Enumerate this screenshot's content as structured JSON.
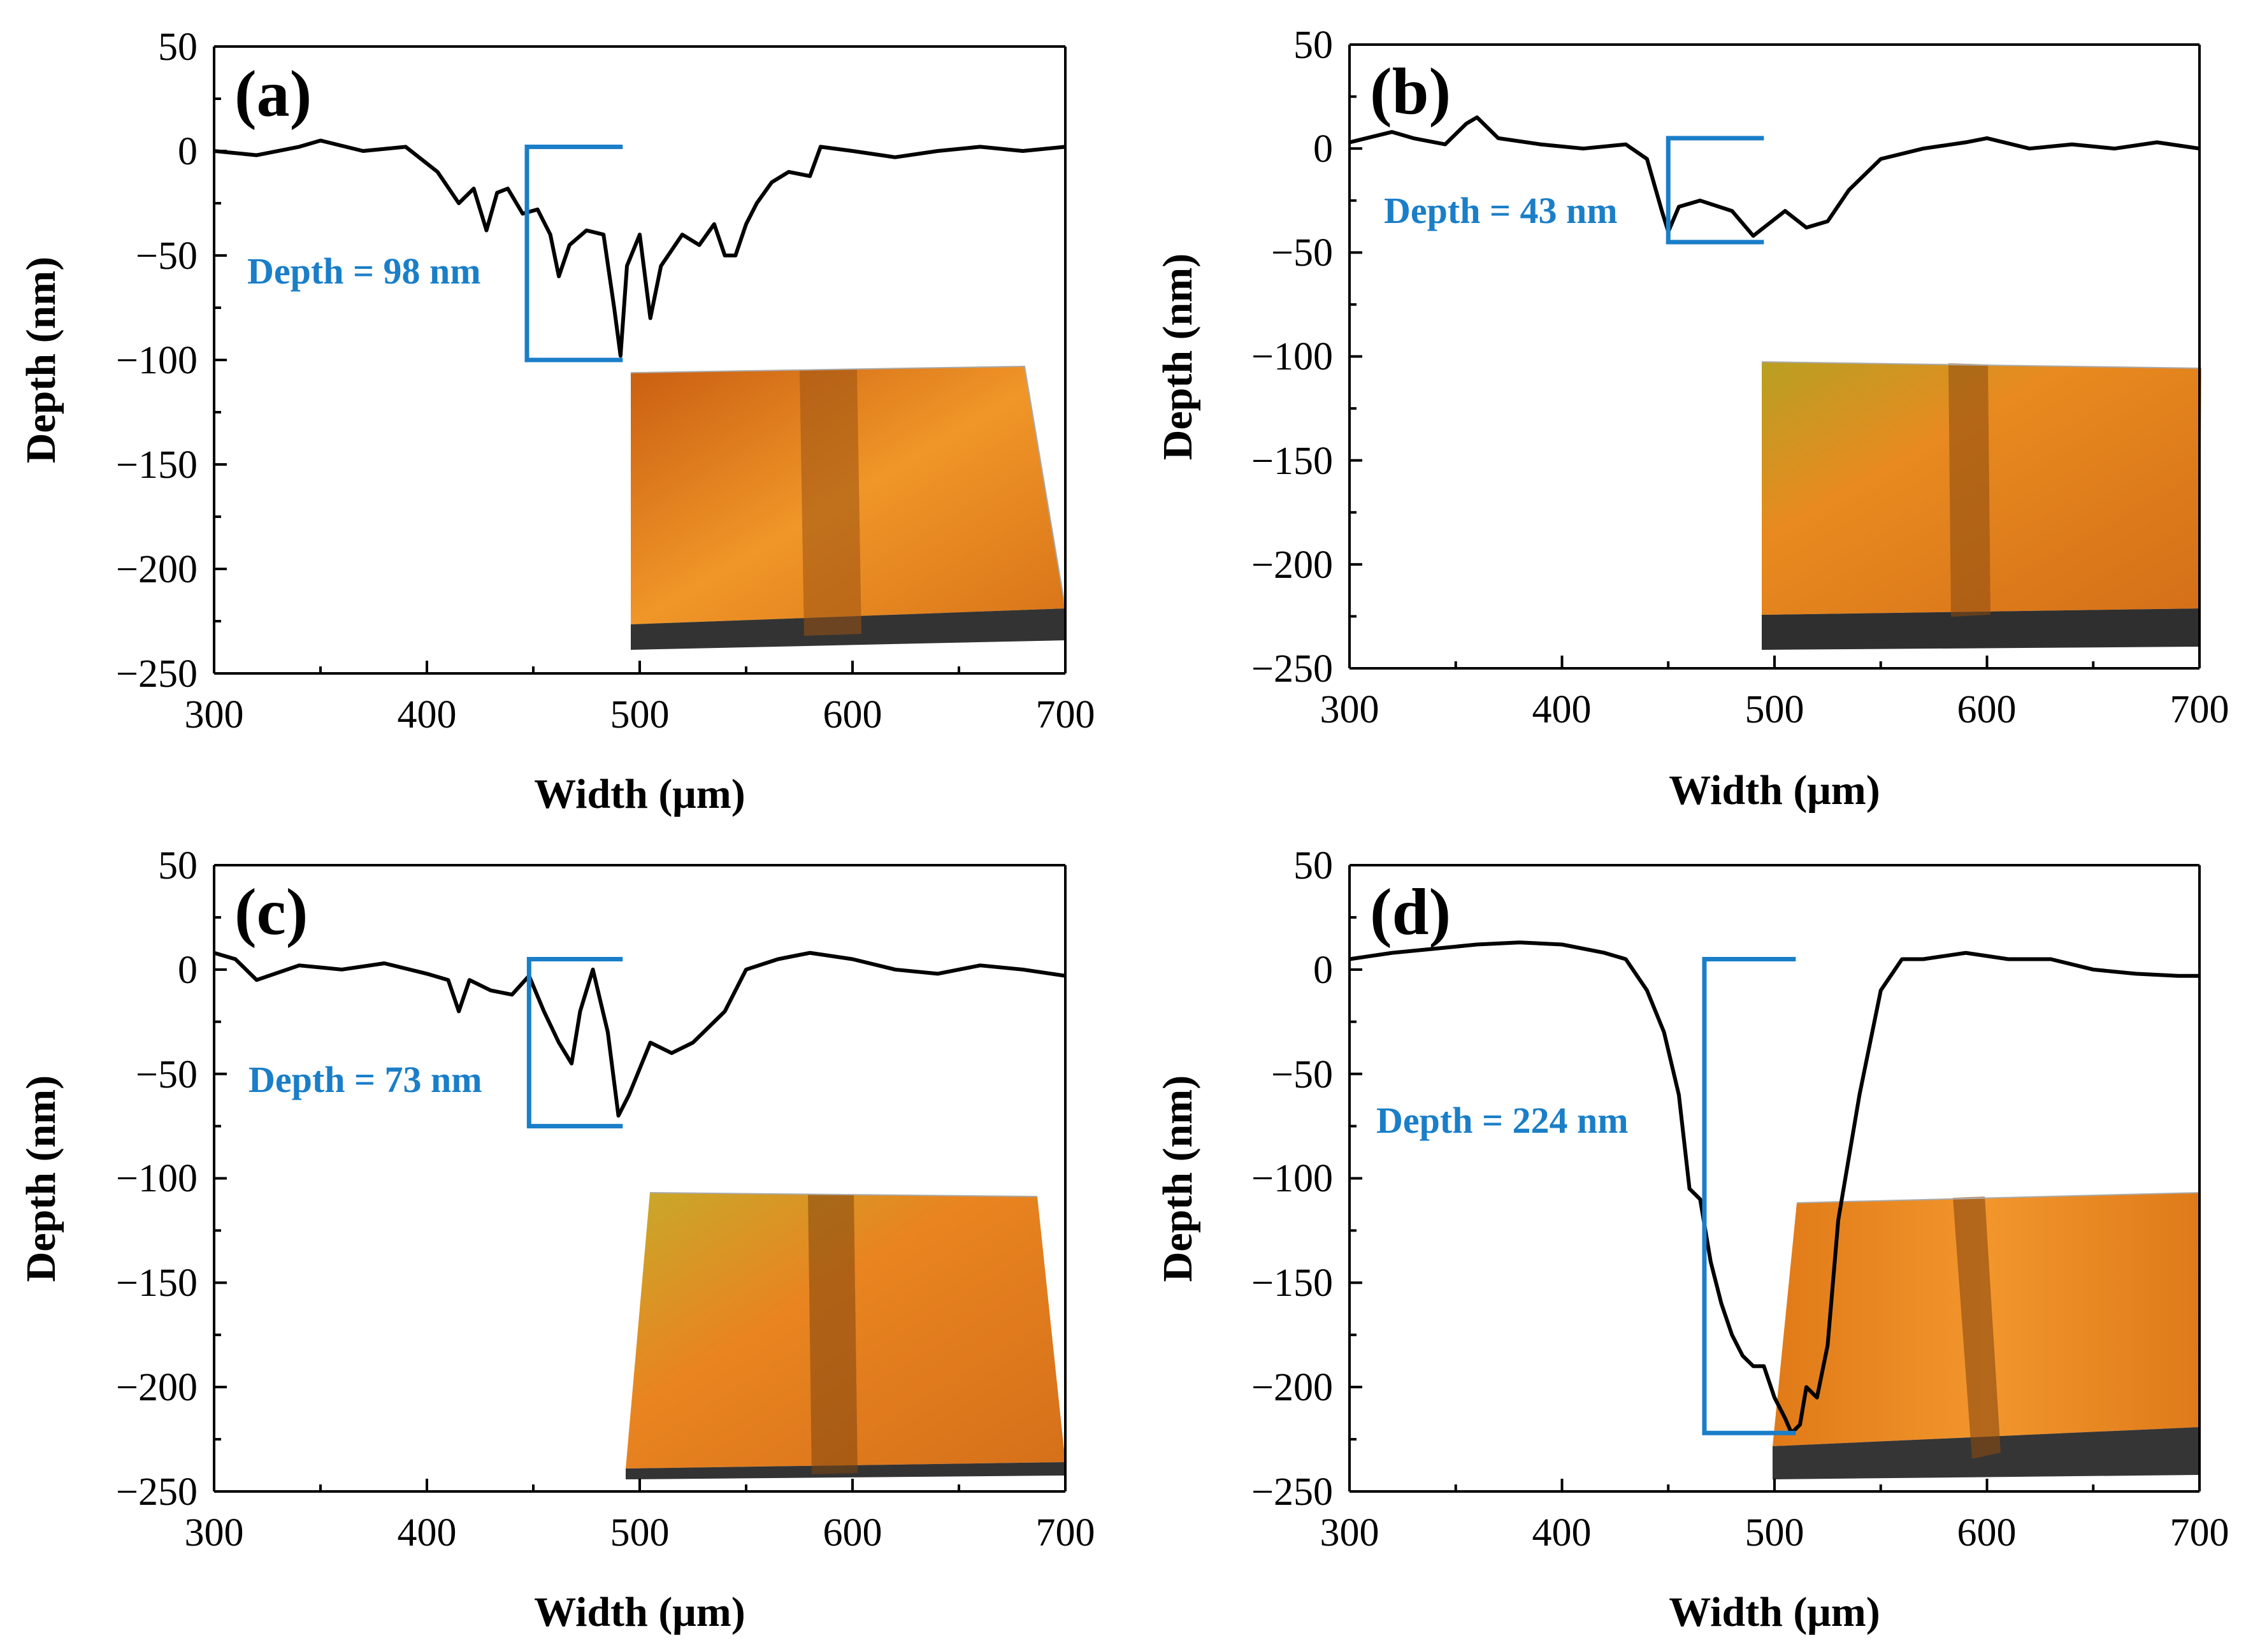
{
  "figure": {
    "accent_color": "#1a7ec8",
    "inset_colors": [
      "#d9701a",
      "#f08a20",
      "#c9a020",
      "#333333"
    ]
  },
  "chart_data": [
    {
      "type": "line",
      "panel_label": "(a)",
      "xlabel": "Width (μm)",
      "ylabel": "Depth (nm)",
      "xlim": [
        300,
        700
      ],
      "ylim": [
        -250,
        50
      ],
      "xticks": [
        "300",
        "400",
        "500",
        "600",
        "700"
      ],
      "yticks": [
        "50",
        "0",
        "−50",
        "−100",
        "−150",
        "−200",
        "−250"
      ],
      "annotation": "Depth = 98 nm",
      "bracket": {
        "x_start": 447,
        "x_end": 492,
        "y_top": 2,
        "y_bottom": -100
      },
      "inset_colors": {
        "top": "#e8821f",
        "side": "#3a3a3a",
        "groove": "#8a4a10"
      },
      "x": [
        300,
        320,
        340,
        350,
        370,
        390,
        405,
        415,
        422,
        428,
        433,
        438,
        445,
        452,
        458,
        462,
        467,
        475,
        483,
        488,
        491,
        494,
        500,
        505,
        510,
        520,
        528,
        535,
        540,
        545,
        550,
        555,
        562,
        570,
        580,
        585,
        600,
        620,
        640,
        660,
        680,
        700
      ],
      "y": [
        0,
        -2,
        2,
        5,
        0,
        2,
        -10,
        -25,
        -18,
        -38,
        -20,
        -18,
        -30,
        -28,
        -40,
        -60,
        -45,
        -38,
        -40,
        -75,
        -98,
        -55,
        -40,
        -80,
        -55,
        -40,
        -45,
        -35,
        -50,
        -50,
        -35,
        -25,
        -15,
        -10,
        -12,
        2,
        0,
        -3,
        0,
        2,
        0,
        2
      ]
    },
    {
      "type": "line",
      "panel_label": "(b)",
      "xlabel": "Width (μm)",
      "ylabel": "Depth (nm)",
      "xlim": [
        300,
        700
      ],
      "ylim": [
        -250,
        50
      ],
      "xticks": [
        "300",
        "400",
        "500",
        "600",
        "700"
      ],
      "yticks": [
        "50",
        "0",
        "−50",
        "−100",
        "−150",
        "−200",
        "−250"
      ],
      "annotation": "Depth = 43 nm",
      "bracket": {
        "x_start": 450,
        "x_end": 495,
        "y_top": 5,
        "y_bottom": -45
      },
      "inset_colors": {
        "top": "#d88a1e",
        "side": "#2f2f2f",
        "groove": "#7a4410"
      },
      "x": [
        300,
        320,
        330,
        345,
        355,
        360,
        370,
        390,
        410,
        430,
        440,
        447,
        450,
        455,
        465,
        480,
        490,
        495,
        505,
        515,
        525,
        535,
        550,
        570,
        590,
        600,
        620,
        640,
        660,
        680,
        700
      ],
      "y": [
        3,
        8,
        5,
        2,
        12,
        15,
        5,
        2,
        0,
        2,
        -5,
        -30,
        -40,
        -28,
        -25,
        -30,
        -42,
        -38,
        -30,
        -38,
        -35,
        -20,
        -5,
        0,
        3,
        5,
        0,
        2,
        0,
        3,
        0
      ]
    },
    {
      "type": "line",
      "panel_label": "(c)",
      "xlabel": "Width (μm)",
      "ylabel": "Depth (nm)",
      "xlim": [
        300,
        700
      ],
      "ylim": [
        -250,
        50
      ],
      "xticks": [
        "300",
        "400",
        "500",
        "600",
        "700"
      ],
      "yticks": [
        "50",
        "0",
        "−50",
        "−100",
        "−150",
        "−200",
        "−250"
      ],
      "annotation": "Depth = 73 nm",
      "bracket": {
        "x_start": 448,
        "x_end": 492,
        "y_top": 5,
        "y_bottom": -75
      },
      "inset_colors": {
        "top": "#e07e1c",
        "side": "#333333",
        "groove": "#80460f"
      },
      "x": [
        300,
        310,
        320,
        340,
        360,
        380,
        400,
        410,
        415,
        420,
        430,
        440,
        448,
        455,
        462,
        468,
        472,
        478,
        485,
        490,
        495,
        505,
        515,
        525,
        535,
        540,
        550,
        565,
        580,
        600,
        620,
        640,
        660,
        680,
        700
      ],
      "y": [
        8,
        5,
        -5,
        2,
        0,
        3,
        -2,
        -5,
        -20,
        -5,
        -10,
        -12,
        -3,
        -20,
        -35,
        -45,
        -20,
        0,
        -30,
        -70,
        -60,
        -35,
        -40,
        -35,
        -25,
        -20,
        0,
        5,
        8,
        5,
        0,
        -2,
        2,
        0,
        -3
      ]
    },
    {
      "type": "line",
      "panel_label": "(d)",
      "xlabel": "Width (μm)",
      "ylabel": "Depth (nm)",
      "xlim": [
        300,
        700
      ],
      "ylim": [
        -250,
        50
      ],
      "xticks": [
        "300",
        "400",
        "500",
        "600",
        "700"
      ],
      "yticks": [
        "50",
        "0",
        "−50",
        "−100",
        "−150",
        "−200",
        "−250"
      ],
      "annotation": "Depth = 224 nm",
      "bracket": {
        "x_start": 467,
        "x_end": 510,
        "y_top": 5,
        "y_bottom": -222
      },
      "inset_colors": {
        "top": "#e8861f",
        "side": "#353535",
        "groove": "#8a4a10"
      },
      "x": [
        300,
        320,
        340,
        360,
        380,
        400,
        420,
        430,
        440,
        448,
        455,
        460,
        465,
        470,
        475,
        480,
        485,
        490,
        495,
        500,
        505,
        508,
        512,
        515,
        520,
        525,
        530,
        540,
        550,
        560,
        570,
        590,
        610,
        630,
        650,
        670,
        690,
        700
      ],
      "y": [
        5,
        8,
        10,
        12,
        13,
        12,
        8,
        5,
        -10,
        -30,
        -60,
        -105,
        -110,
        -140,
        -160,
        -175,
        -185,
        -190,
        -190,
        -205,
        -215,
        -222,
        -218,
        -200,
        -205,
        -180,
        -120,
        -60,
        -10,
        5,
        5,
        8,
        5,
        5,
        0,
        -2,
        -3,
        -3
      ]
    }
  ]
}
